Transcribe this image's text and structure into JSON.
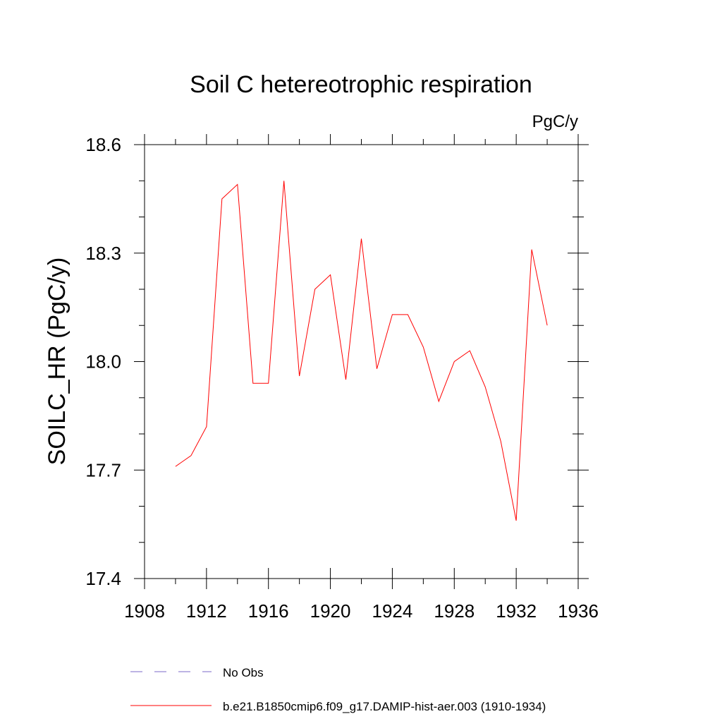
{
  "chart_data": {
    "type": "line",
    "title": "Soil C hetereotrophic respiration",
    "units_label": "PgC/y",
    "xlabel": "",
    "ylabel": "SOILC_HR  (PgC/y)",
    "xlim": [
      1908,
      1936
    ],
    "ylim": [
      17.4,
      18.6
    ],
    "x_ticks": [
      1908,
      1912,
      1916,
      1920,
      1924,
      1928,
      1932,
      1936
    ],
    "x_tick_labels": [
      "1908",
      "1912",
      "1916",
      "1920",
      "1924",
      "1928",
      "1932",
      "1936"
    ],
    "x_minor_ticks": [
      1910,
      1914,
      1918,
      1922,
      1926,
      1930,
      1934
    ],
    "y_ticks": [
      17.4,
      17.7,
      18.0,
      18.3,
      18.6
    ],
    "y_tick_labels": [
      "17.4",
      "17.7",
      "18.0",
      "18.3",
      "18.6"
    ],
    "y_minor_ticks": [
      17.5,
      17.6,
      17.8,
      17.9,
      18.1,
      18.2,
      18.4,
      18.5
    ],
    "grid": false,
    "series": [
      {
        "name": "b.e21.B1850cmip6.f09_g17.DAMIP-hist-aer.003 (1910-1934)",
        "color": "#ff0000",
        "x": [
          1910,
          1911,
          1912,
          1913,
          1914,
          1915,
          1916,
          1917,
          1918,
          1919,
          1920,
          1921,
          1922,
          1923,
          1924,
          1925,
          1926,
          1927,
          1928,
          1929,
          1930,
          1931,
          1932,
          1933,
          1934
        ],
        "y": [
          17.71,
          17.74,
          17.82,
          18.45,
          18.49,
          17.94,
          17.94,
          18.5,
          17.96,
          18.2,
          18.24,
          17.95,
          18.34,
          17.98,
          18.13,
          18.13,
          18.04,
          17.89,
          18.0,
          18.03,
          17.93,
          17.78,
          17.56,
          18.31,
          18.1
        ]
      }
    ],
    "legend": {
      "placement": "bottom",
      "entries": [
        {
          "label": "No Obs",
          "color": "#7b68c8",
          "style": "dashed"
        },
        {
          "label": "b.e21.B1850cmip6.f09_g17.DAMIP-hist-aer.003 (1910-1934)",
          "color": "#ff0000",
          "style": "solid"
        }
      ]
    }
  }
}
